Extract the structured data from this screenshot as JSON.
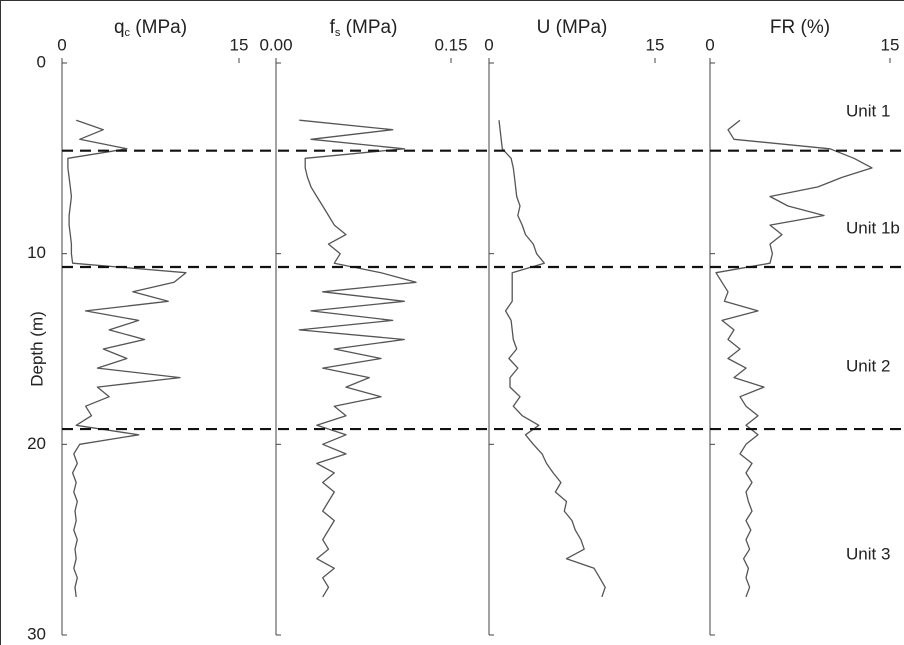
{
  "chart_data": [
    {
      "type": "line",
      "title": "q",
      "title_subscript": "c",
      "title_suffix": " (MPa)",
      "color": "#555555",
      "xlim": [
        0,
        15
      ],
      "xticks": [
        0,
        15
      ],
      "ylim": [
        0,
        30
      ],
      "yticks": [
        0,
        10,
        20,
        30
      ],
      "ylabel": "Depth (m)",
      "depth": [
        3,
        3.5,
        4,
        4.5,
        5,
        5.5,
        6,
        6.5,
        7,
        7.5,
        8,
        8.5,
        9,
        9.5,
        10,
        10.5,
        11,
        11.5,
        12,
        12.5,
        13,
        13.5,
        14,
        14.5,
        15,
        15.5,
        16,
        16.5,
        17,
        17.5,
        18,
        18.5,
        19,
        19.5,
        20,
        20.5,
        21,
        21.5,
        22,
        22.5,
        23,
        23.5,
        24,
        24.5,
        25,
        25.5,
        26,
        26.5,
        27,
        27.5,
        28
      ],
      "values": [
        1.2,
        3.5,
        1.5,
        5.5,
        0.5,
        0.5,
        0.6,
        0.7,
        0.8,
        0.7,
        0.6,
        0.6,
        0.7,
        0.8,
        0.8,
        0.9,
        10.5,
        9.5,
        6.0,
        9.0,
        2.0,
        6.5,
        4.0,
        7.0,
        3.5,
        5.5,
        3.0,
        10.0,
        3.0,
        4.0,
        2.0,
        2.5,
        1.2,
        6.5,
        1.5,
        1.0,
        1.3,
        0.9,
        1.2,
        1.0,
        1.3,
        1.1,
        1.2,
        1.0,
        1.3,
        1.1,
        1.2,
        1.0,
        1.3,
        1.1,
        1.2
      ]
    },
    {
      "type": "line",
      "title": "f",
      "title_subscript": "s",
      "title_suffix": " (MPa)",
      "color": "#555555",
      "xlim": [
        0,
        0.15
      ],
      "xticks": [
        {
          "value": 0,
          "label": "0.00"
        },
        0.15
      ],
      "ylim": [
        0,
        30
      ],
      "yticks": [
        0,
        10,
        20,
        30
      ],
      "depth": [
        3,
        3.5,
        4,
        4.5,
        5,
        5.5,
        6,
        6.5,
        7,
        7.5,
        8,
        8.5,
        9,
        9.5,
        10,
        10.5,
        11,
        11.5,
        12,
        12.5,
        13,
        13.5,
        14,
        14.5,
        15,
        15.5,
        16,
        16.5,
        17,
        17.5,
        18,
        18.5,
        19,
        19.5,
        20,
        20.5,
        21,
        21.5,
        22,
        22.5,
        23,
        23.5,
        24,
        24.5,
        25,
        25.5,
        26,
        26.5,
        27,
        27.5,
        28
      ],
      "values": [
        0.02,
        0.1,
        0.03,
        0.11,
        0.025,
        0.025,
        0.027,
        0.03,
        0.035,
        0.04,
        0.045,
        0.05,
        0.06,
        0.045,
        0.055,
        0.05,
        0.09,
        0.12,
        0.04,
        0.11,
        0.03,
        0.1,
        0.02,
        0.11,
        0.05,
        0.09,
        0.04,
        0.08,
        0.06,
        0.09,
        0.05,
        0.06,
        0.035,
        0.06,
        0.04,
        0.06,
        0.035,
        0.05,
        0.04,
        0.05,
        0.045,
        0.04,
        0.05,
        0.045,
        0.04,
        0.045,
        0.035,
        0.05,
        0.04,
        0.045,
        0.04
      ]
    },
    {
      "type": "line",
      "title": "U (MPa)",
      "color": "#555555",
      "xlim": [
        0,
        15
      ],
      "xticks": [
        0,
        15
      ],
      "ylim": [
        0,
        30
      ],
      "yticks": [
        0,
        10,
        20,
        30
      ],
      "depth": [
        3,
        3.5,
        4,
        4.5,
        5,
        5.5,
        6,
        6.5,
        7,
        7.5,
        8,
        8.5,
        9,
        9.5,
        10,
        10.5,
        11,
        11.5,
        12,
        12.5,
        13,
        13.5,
        14,
        14.5,
        15,
        15.5,
        16,
        16.5,
        17,
        17.5,
        18,
        18.5,
        19,
        19.5,
        20,
        20.5,
        21,
        21.5,
        22,
        22.5,
        23,
        23.5,
        24,
        24.5,
        25,
        25.5,
        26,
        26.5,
        27,
        27.5,
        28
      ],
      "values": [
        0.9,
        1.0,
        1.1,
        1.2,
        2.0,
        2.2,
        2.3,
        2.4,
        2.5,
        2.8,
        2.6,
        3.0,
        3.3,
        4.0,
        4.3,
        5.0,
        2.1,
        2.1,
        2.1,
        2.1,
        1.5,
        2.0,
        2.1,
        2.2,
        2.5,
        1.8,
        2.6,
        1.9,
        1.9,
        2.8,
        2.2,
        3.0,
        4.5,
        3.3,
        4.0,
        4.8,
        5.2,
        5.8,
        6.5,
        6.0,
        7.0,
        6.8,
        7.5,
        7.8,
        8.3,
        8.6,
        7.0,
        9.5,
        10.0,
        10.5,
        10.2
      ]
    },
    {
      "type": "line",
      "title": "FR (%)",
      "color": "#555555",
      "xlim": [
        0,
        15
      ],
      "xticks": [
        0,
        15
      ],
      "ylim": [
        0,
        30
      ],
      "yticks": [
        0,
        10,
        20,
        30
      ],
      "depth": [
        3,
        3.5,
        4,
        4.5,
        5,
        5.5,
        6,
        6.5,
        7,
        7.5,
        8,
        8.5,
        9,
        9.5,
        10,
        10.5,
        11,
        11.5,
        12,
        12.5,
        13,
        13.5,
        14,
        14.5,
        15,
        15.5,
        16,
        16.5,
        17,
        17.5,
        18,
        18.5,
        19,
        19.5,
        20,
        20.5,
        21,
        21.5,
        22,
        22.5,
        23,
        23.5,
        24,
        24.5,
        25,
        25.5,
        26,
        26.5,
        27,
        27.5,
        28
      ],
      "values": [
        2.5,
        1.5,
        2.0,
        10.0,
        12.0,
        13.5,
        11.0,
        9.0,
        5.0,
        6.5,
        9.5,
        5.0,
        6.0,
        5.0,
        5.2,
        5.0,
        0.5,
        1.0,
        1.5,
        1.2,
        4.0,
        1.0,
        2.0,
        1.5,
        2.5,
        1.5,
        3.0,
        2.0,
        4.5,
        2.5,
        3.0,
        4.0,
        3.0,
        4.0,
        3.0,
        2.5,
        3.5,
        3.0,
        3.5,
        3.0,
        3.2,
        3.5,
        3.0,
        3.4,
        3.0,
        3.3,
        2.8,
        3.2,
        3.0,
        3.3,
        3.0
      ]
    }
  ],
  "boundaries": [
    4.6,
    10.7,
    19.2
  ],
  "unit_labels": [
    "Unit 1",
    "Unit 1b",
    "Unit 2",
    "Unit 3"
  ]
}
